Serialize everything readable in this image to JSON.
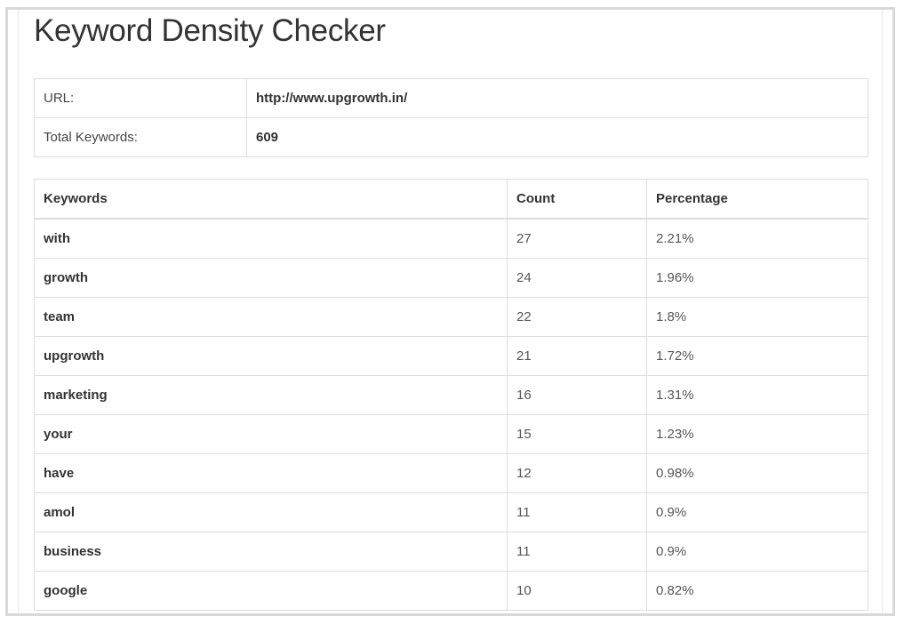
{
  "page": {
    "title": "Keyword Density Checker"
  },
  "info": {
    "url_label": "URL:",
    "url_value": "http://www.upgrowth.in/",
    "total_label": "Total Keywords:",
    "total_value": "609"
  },
  "keywords_table": {
    "headers": {
      "keyword": "Keywords",
      "count": "Count",
      "percentage": "Percentage"
    },
    "rows": [
      {
        "keyword": "with",
        "count": "27",
        "percentage": "2.21%"
      },
      {
        "keyword": "growth",
        "count": "24",
        "percentage": "1.96%"
      },
      {
        "keyword": "team",
        "count": "22",
        "percentage": "1.8%"
      },
      {
        "keyword": "upgrowth",
        "count": "21",
        "percentage": "1.72%"
      },
      {
        "keyword": "marketing",
        "count": "16",
        "percentage": "1.31%"
      },
      {
        "keyword": "your",
        "count": "15",
        "percentage": "1.23%"
      },
      {
        "keyword": "have",
        "count": "12",
        "percentage": "0.98%"
      },
      {
        "keyword": "amol",
        "count": "11",
        "percentage": "0.9%"
      },
      {
        "keyword": "business",
        "count": "11",
        "percentage": "0.9%"
      },
      {
        "keyword": "google",
        "count": "10",
        "percentage": "0.82%"
      }
    ]
  }
}
